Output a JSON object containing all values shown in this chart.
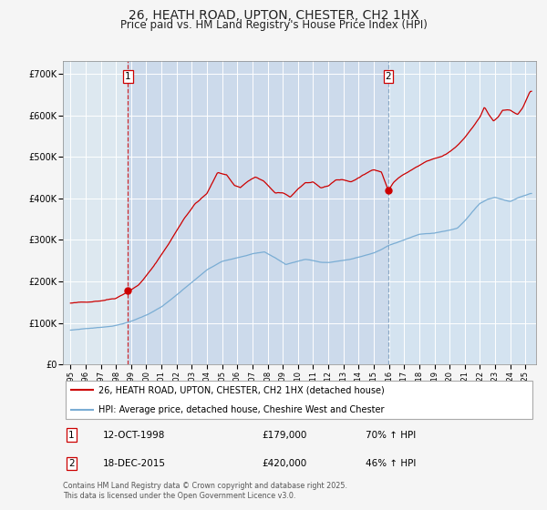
{
  "title": "26, HEATH ROAD, UPTON, CHESTER, CH2 1HX",
  "subtitle": "Price paid vs. HM Land Registry's House Price Index (HPI)",
  "title_fontsize": 10,
  "subtitle_fontsize": 8.5,
  "fig_bg_color": "#f5f5f5",
  "plot_bg_color": "#dde8f0",
  "grid_color": "#ffffff",
  "red_line_color": "#cc0000",
  "blue_line_color": "#7aadd4",
  "sale1_date_num": 1998.79,
  "sale1_price": 179000,
  "sale2_date_num": 2015.96,
  "sale2_price": 420000,
  "ylim": [
    0,
    730000
  ],
  "yticks": [
    0,
    100000,
    200000,
    300000,
    400000,
    500000,
    600000,
    700000
  ],
  "ytick_labels": [
    "£0",
    "£100K",
    "£200K",
    "£300K",
    "£400K",
    "£500K",
    "£600K",
    "£700K"
  ],
  "xmin": 1994.5,
  "xmax": 2025.7,
  "legend1_label": "26, HEATH ROAD, UPTON, CHESTER, CH2 1HX (detached house)",
  "legend2_label": "HPI: Average price, detached house, Cheshire West and Chester",
  "copyright_text": "Contains HM Land Registry data © Crown copyright and database right 2025.\nThis data is licensed under the Open Government Licence v3.0.",
  "xticks": [
    1995,
    1996,
    1997,
    1998,
    1999,
    2000,
    2001,
    2002,
    2003,
    2004,
    2005,
    2006,
    2007,
    2008,
    2009,
    2010,
    2011,
    2012,
    2013,
    2014,
    2015,
    2016,
    2017,
    2018,
    2019,
    2020,
    2021,
    2022,
    2023,
    2024,
    2025
  ]
}
